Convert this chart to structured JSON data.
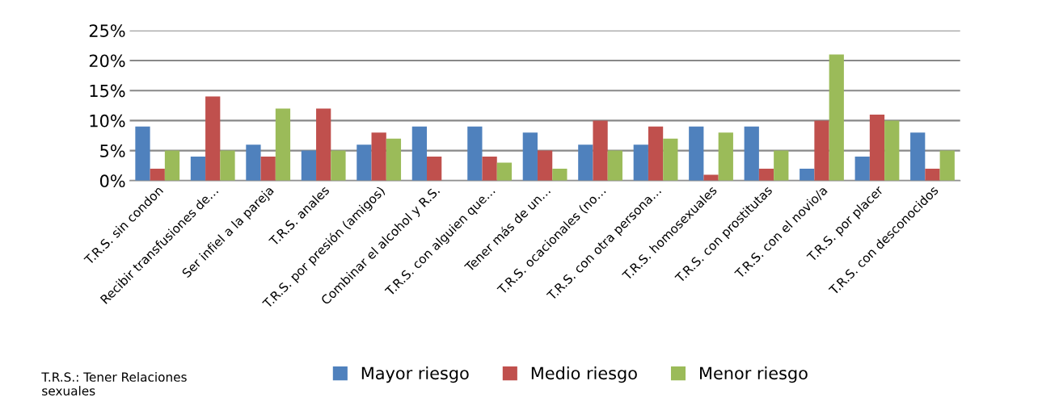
{
  "chart_data": {
    "type": "bar",
    "categories": [
      "T.R.S. sin condon",
      "Recibir transfusiones de…",
      "Ser infiel a la pareja",
      "T.R.S. anales",
      "T.R.S. por presión (amigos)",
      "Combinar el alcohol y R.S.",
      "T.R.S. con alguien que…",
      "Tener más de un…",
      "T.R.S. ocacionales (no…",
      "T.R.S. con otra persona…",
      "T.R.S. homosexuales",
      "T.R.S. con prostitutas",
      "T.R.S. con el novio/a",
      "T.R.S. por placer",
      "T.R.S. con desconocidos"
    ],
    "series": [
      {
        "name": "Mayor riesgo",
        "color": "#4f81bd",
        "values": [
          9,
          4,
          6,
          5,
          6,
          9,
          9,
          8,
          6,
          6,
          9,
          9,
          2,
          4,
          8
        ]
      },
      {
        "name": "Medio riesgo",
        "color": "#c0504d",
        "values": [
          2,
          14,
          4,
          12,
          8,
          4,
          4,
          5,
          10,
          9,
          1,
          2,
          10,
          11,
          2
        ]
      },
      {
        "name": "Menor riesgo",
        "color": "#9bbb59",
        "values": [
          5,
          5,
          12,
          5,
          7,
          0,
          3,
          2,
          5,
          7,
          8,
          5,
          21,
          10,
          5
        ]
      }
    ],
    "ylim": [
      0,
      25
    ],
    "yticks": [
      {
        "value": 0,
        "label": "0%"
      },
      {
        "value": 5,
        "label": "5%"
      },
      {
        "value": 10,
        "label": "10%"
      },
      {
        "value": 15,
        "label": "15%"
      },
      {
        "value": 20,
        "label": "20%"
      },
      {
        "value": 25,
        "label": "25%"
      }
    ],
    "grid": "y",
    "legend": "bottom",
    "annotations": [
      "T.R.S.: Tener Relaciones\nsexuales"
    ]
  }
}
